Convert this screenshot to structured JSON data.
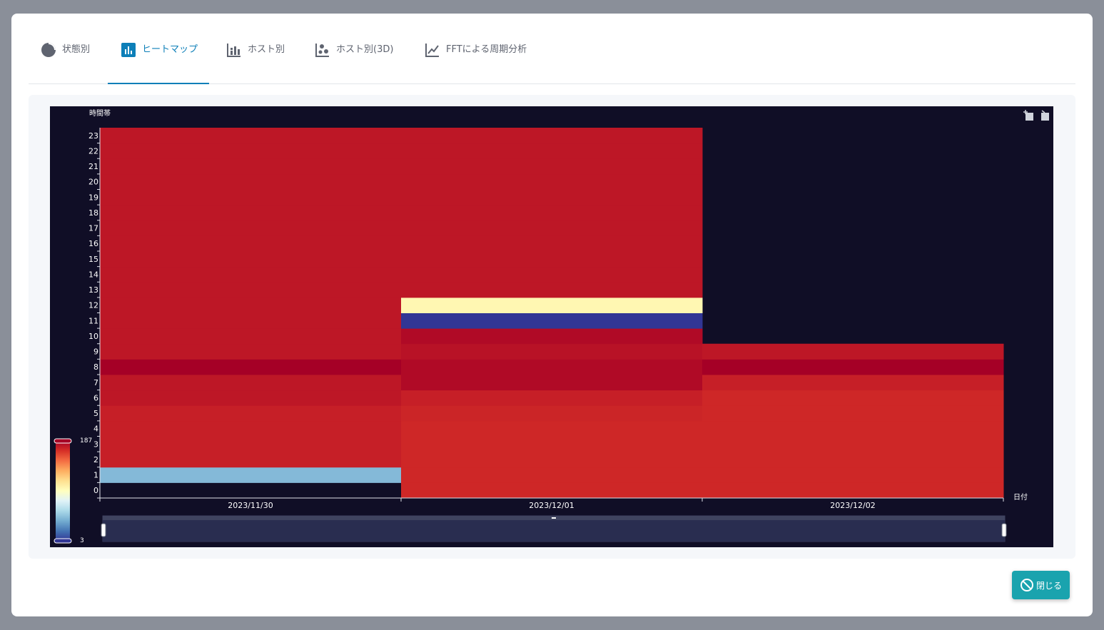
{
  "tabs": [
    {
      "label": "状態別",
      "icon": "pie-chart-icon",
      "active": false
    },
    {
      "label": "ヒートマップ",
      "icon": "bar-chart-icon",
      "active": true
    },
    {
      "label": "ホスト別",
      "icon": "stacked-bar-icon",
      "active": false
    },
    {
      "label": "ホスト別(3D)",
      "icon": "scatter-icon",
      "active": false
    },
    {
      "label": "FFTによる周期分析",
      "icon": "line-chart-icon",
      "active": false
    }
  ],
  "close_button": {
    "label": "閉じる",
    "icon": "block-icon"
  },
  "chart_data": {
    "type": "heatmap",
    "title": "",
    "xlabel": "日付",
    "ylabel": "時間帯",
    "x_categories": [
      "2023/11/30",
      "2023/12/01",
      "2023/12/02"
    ],
    "y_categories": [
      "0",
      "1",
      "2",
      "3",
      "4",
      "5",
      "6",
      "7",
      "8",
      "9",
      "10",
      "11",
      "12",
      "13",
      "14",
      "15",
      "16",
      "17",
      "18",
      "19",
      "20",
      "21",
      "22",
      "23"
    ],
    "values": [
      [
        null,
        45,
        175,
        175,
        175,
        175,
        178,
        178,
        187,
        178,
        178,
        178,
        178,
        178,
        178,
        178,
        178,
        178,
        178,
        178,
        178,
        178,
        178,
        178
      ],
      [
        172,
        172,
        172,
        172,
        172,
        173,
        175,
        183,
        183,
        180,
        183,
        3,
        100,
        178,
        178,
        178,
        178,
        178,
        178,
        178,
        178,
        178,
        178,
        178
      ],
      [
        172,
        172,
        172,
        172,
        172,
        172,
        172,
        175,
        187,
        178,
        null,
        null,
        null,
        null,
        null,
        null,
        null,
        null,
        null,
        null,
        null,
        null,
        null,
        null
      ]
    ],
    "visual_map": {
      "min": 3,
      "max": 187,
      "min_label": "3",
      "max_label": "187"
    },
    "toolbox": [
      "zoom-icon",
      "zoom-reset-icon"
    ],
    "data_zoom": {
      "start": 0,
      "end": 100
    }
  }
}
